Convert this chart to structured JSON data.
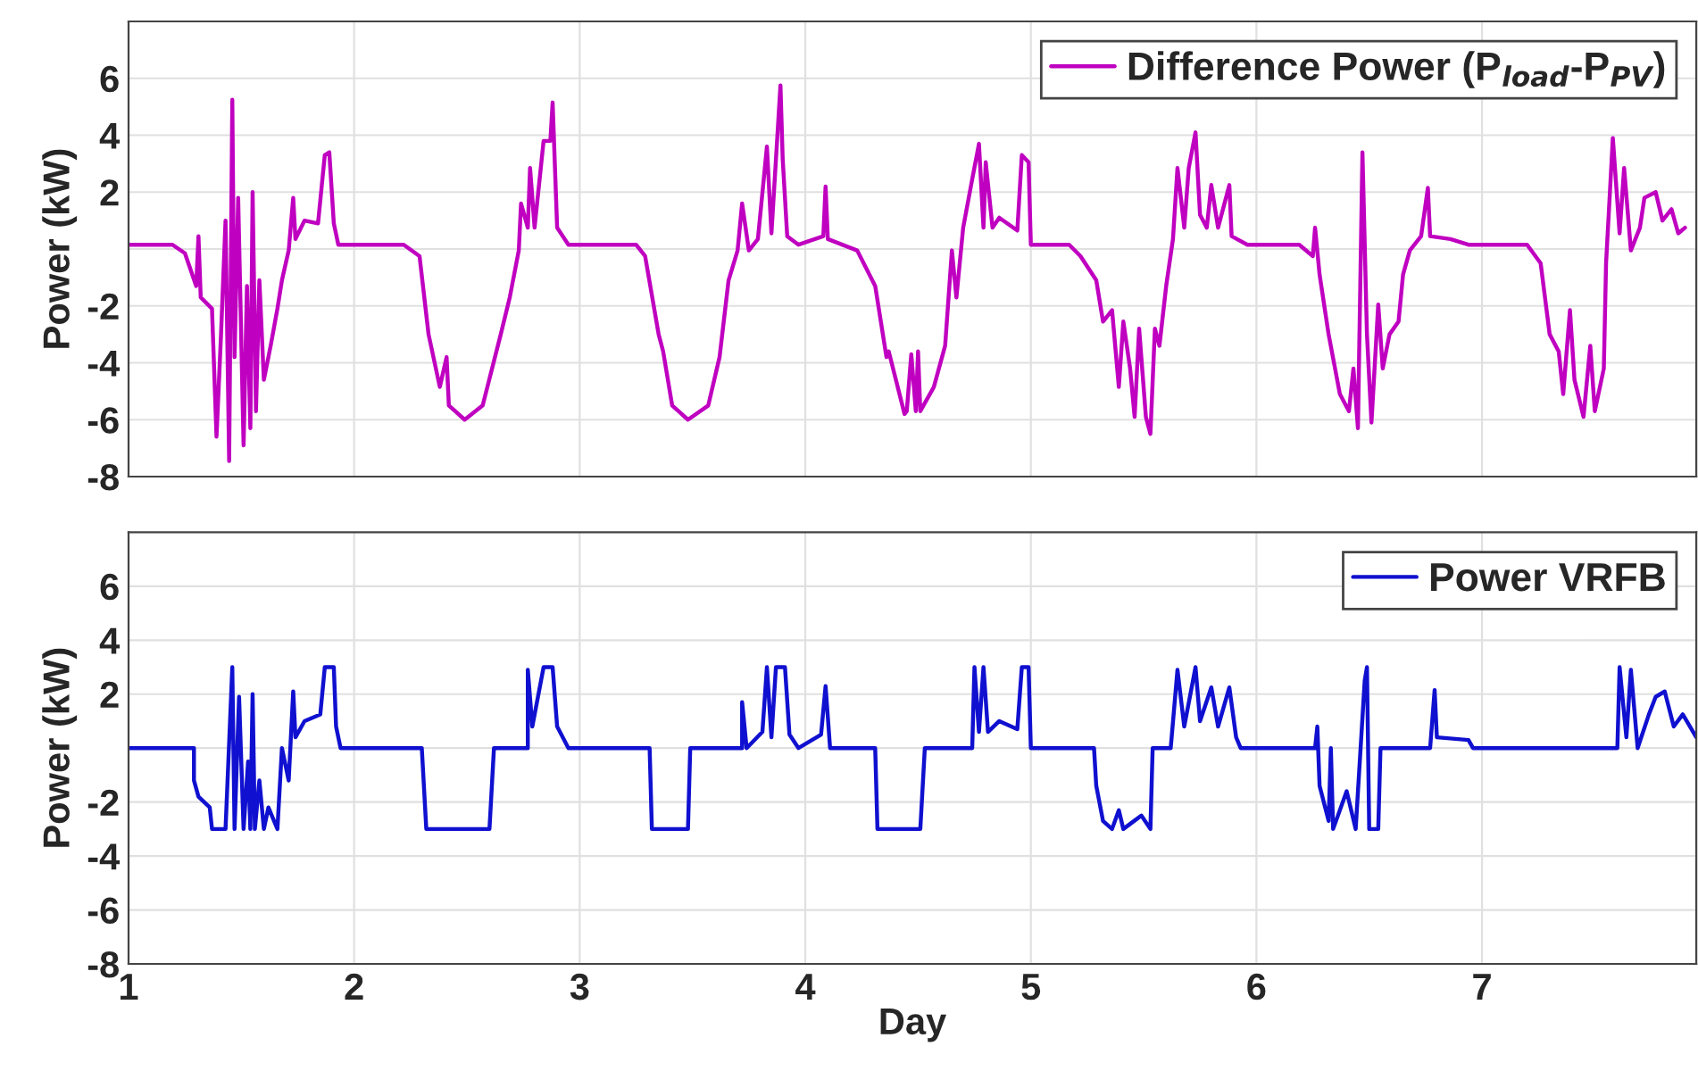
{
  "chart_data": [
    {
      "type": "line",
      "xlim": [
        1,
        7.95
      ],
      "xticks": [
        1,
        2,
        3,
        4,
        5,
        6,
        7
      ],
      "ylim": [
        -8,
        8
      ],
      "yticks": [
        -8,
        -6,
        -4,
        -2,
        {
          "value": 0,
          "label": null
        },
        2,
        4,
        6
      ],
      "ylabel": "Power (kW)",
      "tick_labels": "y",
      "grid": true,
      "legend": "top right",
      "series": [
        {
          "name": "Difference Power (P$_{load}$-P$_{PV}$)",
          "color": "#c000c0",
          "x": [
            1.0,
            1.195,
            1.25,
            1.3,
            1.31,
            1.32,
            1.37,
            1.39,
            1.41,
            1.43,
            1.446,
            1.46,
            1.47,
            1.486,
            1.51,
            1.525,
            1.54,
            1.55,
            1.565,
            1.58,
            1.6,
            1.63,
            1.66,
            1.68,
            1.71,
            1.73,
            1.74,
            1.78,
            1.84,
            1.87,
            1.89,
            1.91,
            1.93,
            2.22,
            2.29,
            2.33,
            2.38,
            2.41,
            2.42,
            2.49,
            2.57,
            2.65,
            2.69,
            2.73,
            2.74,
            2.77,
            2.78,
            2.8,
            2.84,
            2.87,
            2.88,
            2.9,
            2.95,
            3.25,
            3.29,
            3.35,
            3.37,
            3.41,
            3.48,
            3.57,
            3.62,
            3.66,
            3.7,
            3.72,
            3.75,
            3.79,
            3.83,
            3.85,
            3.87,
            3.89,
            3.9,
            3.92,
            3.97,
            4.08,
            4.09,
            4.1,
            4.23,
            4.31,
            4.36,
            4.37,
            4.44,
            4.45,
            4.47,
            4.49,
            4.5,
            4.51,
            4.57,
            4.62,
            4.65,
            4.67,
            4.7,
            4.74,
            4.77,
            4.79,
            4.8,
            4.83,
            4.86,
            4.94,
            4.96,
            4.99,
            5.0,
            5.17,
            5.22,
            5.29,
            5.32,
            5.36,
            5.39,
            5.41,
            5.44,
            5.46,
            5.48,
            5.51,
            5.53,
            5.55,
            5.57,
            5.6,
            5.63,
            5.65,
            5.68,
            5.7,
            5.73,
            5.75,
            5.78,
            5.8,
            5.83,
            5.88,
            5.89,
            5.96,
            6.19,
            6.25,
            6.26,
            6.28,
            6.32,
            6.37,
            6.41,
            6.43,
            6.45,
            6.47,
            6.49,
            6.51,
            6.54,
            6.56,
            6.59,
            6.63,
            6.65,
            6.68,
            6.73,
            6.76,
            6.77,
            6.86,
            6.94,
            7.2,
            7.26,
            7.3,
            7.34,
            7.36,
            7.39,
            7.41,
            7.45,
            7.48,
            7.5,
            7.54,
            7.55,
            7.58,
            7.61,
            7.63,
            7.66,
            7.7,
            7.72,
            7.77,
            7.8,
            7.84,
            7.87,
            7.9
          ],
          "values": [
            0.15,
            0.15,
            -0.15,
            -1.3,
            0.45,
            -1.7,
            -2.1,
            -6.6,
            -3.0,
            1.0,
            -7.45,
            5.25,
            -3.8,
            1.8,
            -6.9,
            -1.3,
            -6.3,
            2.0,
            -5.7,
            -1.1,
            -4.6,
            -3.4,
            -2.1,
            -1.1,
            -0.05,
            1.8,
            0.35,
            1.0,
            0.9,
            3.3,
            3.4,
            0.9,
            0.15,
            0.15,
            -0.25,
            -3.0,
            -4.85,
            -3.8,
            -5.5,
            -6.0,
            -5.5,
            -3.0,
            -1.7,
            -0.05,
            1.6,
            0.75,
            2.85,
            0.75,
            3.8,
            3.8,
            5.15,
            0.75,
            0.15,
            0.15,
            -0.25,
            -3.0,
            -3.6,
            -5.5,
            -6.0,
            -5.5,
            -3.8,
            -1.1,
            -0.05,
            1.6,
            -0.05,
            0.35,
            3.6,
            0.55,
            3.15,
            5.75,
            3.15,
            0.45,
            0.15,
            0.45,
            2.2,
            0.35,
            -0.05,
            -1.3,
            -3.8,
            -3.6,
            -5.8,
            -5.7,
            -3.7,
            -5.7,
            -3.6,
            -5.7,
            -4.85,
            -3.4,
            -0.05,
            -1.7,
            0.75,
            2.45,
            3.7,
            0.75,
            3.05,
            0.75,
            1.1,
            0.65,
            3.3,
            3.05,
            0.15,
            0.15,
            -0.25,
            -1.1,
            -2.55,
            -2.15,
            -4.85,
            -2.55,
            -4.2,
            -5.9,
            -2.8,
            -5.9,
            -6.5,
            -2.8,
            -3.4,
            -1.3,
            0.35,
            2.85,
            0.75,
            2.85,
            4.1,
            1.2,
            0.75,
            2.25,
            0.75,
            2.25,
            0.45,
            0.15,
            0.15,
            -0.25,
            0.75,
            -0.9,
            -3.0,
            -5.1,
            -5.7,
            -4.2,
            -6.3,
            3.4,
            -3.0,
            -6.1,
            -1.95,
            -4.2,
            -3.0,
            -2.55,
            -0.9,
            -0.05,
            0.45,
            2.15,
            0.45,
            0.35,
            0.15,
            0.15,
            -0.5,
            -3.0,
            -3.6,
            -5.1,
            -2.15,
            -4.6,
            -5.9,
            -3.4,
            -5.7,
            -4.2,
            -0.5,
            3.9,
            0.55,
            2.85,
            -0.05,
            0.75,
            1.8,
            2.0,
            1.0,
            1.4,
            0.55,
            0.75
          ]
        }
      ]
    },
    {
      "type": "line",
      "xlim": [
        1,
        7.95
      ],
      "xticks": [
        1,
        2,
        3,
        4,
        5,
        6,
        7
      ],
      "ylim": [
        -8,
        8
      ],
      "yticks": [
        -8,
        -6,
        -4,
        -2,
        {
          "value": 0,
          "label": null
        },
        2,
        4,
        6
      ],
      "ylabel": "Power (kW)",
      "xlabel": "Day",
      "grid": true,
      "legend": "top right",
      "series": [
        {
          "name": "Power VRFB",
          "color": "#1010d0",
          "x": [
            1.0,
            1.29,
            1.29,
            1.31,
            1.36,
            1.37,
            1.43,
            1.45,
            1.46,
            1.47,
            1.49,
            1.51,
            1.53,
            1.54,
            1.55,
            1.56,
            1.58,
            1.6,
            1.62,
            1.66,
            1.68,
            1.71,
            1.73,
            1.74,
            1.78,
            1.85,
            1.87,
            1.91,
            1.92,
            1.94,
            2.3,
            2.32,
            2.6,
            2.62,
            2.77,
            2.77,
            2.79,
            2.84,
            2.88,
            2.9,
            2.95,
            3.31,
            3.32,
            3.48,
            3.49,
            3.72,
            3.72,
            3.74,
            3.81,
            3.83,
            3.85,
            3.87,
            3.91,
            3.93,
            3.97,
            4.07,
            4.09,
            4.11,
            4.31,
            4.32,
            4.51,
            4.53,
            4.74,
            4.75,
            4.77,
            4.79,
            4.81,
            4.86,
            4.94,
            4.96,
            4.99,
            5.0,
            5.28,
            5.29,
            5.32,
            5.36,
            5.39,
            5.41,
            5.49,
            5.53,
            5.54,
            5.62,
            5.65,
            5.68,
            5.73,
            5.75,
            5.8,
            5.83,
            5.88,
            5.91,
            5.93,
            6.26,
            6.27,
            6.28,
            6.32,
            6.33,
            6.34,
            6.4,
            6.44,
            6.48,
            6.49,
            6.5,
            6.54,
            6.55,
            6.77,
            6.79,
            6.8,
            6.94,
            6.96,
            7.6,
            7.61,
            7.64,
            7.66,
            7.69,
            7.74,
            7.77,
            7.81,
            7.85,
            7.89,
            7.95
          ],
          "values": [
            0,
            0,
            -1.2,
            -1.8,
            -2.2,
            -3,
            -3,
            1.0,
            3,
            -3,
            1.9,
            -3,
            -0.5,
            -3,
            2.0,
            -3,
            -1.2,
            -3,
            -2.2,
            -3,
            0,
            -1.2,
            2.1,
            0.4,
            1.0,
            1.25,
            3,
            3,
            0.8,
            0,
            0,
            -3,
            -3,
            0,
            0,
            2.9,
            0.8,
            3,
            3,
            0.8,
            0,
            0,
            -3,
            -3,
            0,
            0,
            1.7,
            0,
            0.6,
            3,
            0.4,
            3,
            3,
            0.5,
            0,
            0.5,
            2.3,
            0,
            0,
            -3,
            -3,
            0,
            0,
            3,
            0.6,
            3,
            0.6,
            1.0,
            0.7,
            3,
            3,
            0,
            0,
            -1.4,
            -2.7,
            -3,
            -2.3,
            -3,
            -2.5,
            -3,
            0,
            0,
            2.9,
            0.8,
            3,
            1.0,
            2.25,
            0.8,
            2.25,
            0.4,
            0,
            0,
            0.8,
            -1.4,
            -2.7,
            0,
            -3,
            -1.6,
            -3,
            2.5,
            3,
            -3,
            -3,
            0,
            0,
            2.15,
            0.4,
            0.3,
            0,
            0,
            3,
            0.4,
            2.9,
            0,
            1.25,
            1.9,
            2.1,
            0.8,
            1.25,
            0.4
          ]
        }
      ]
    }
  ]
}
